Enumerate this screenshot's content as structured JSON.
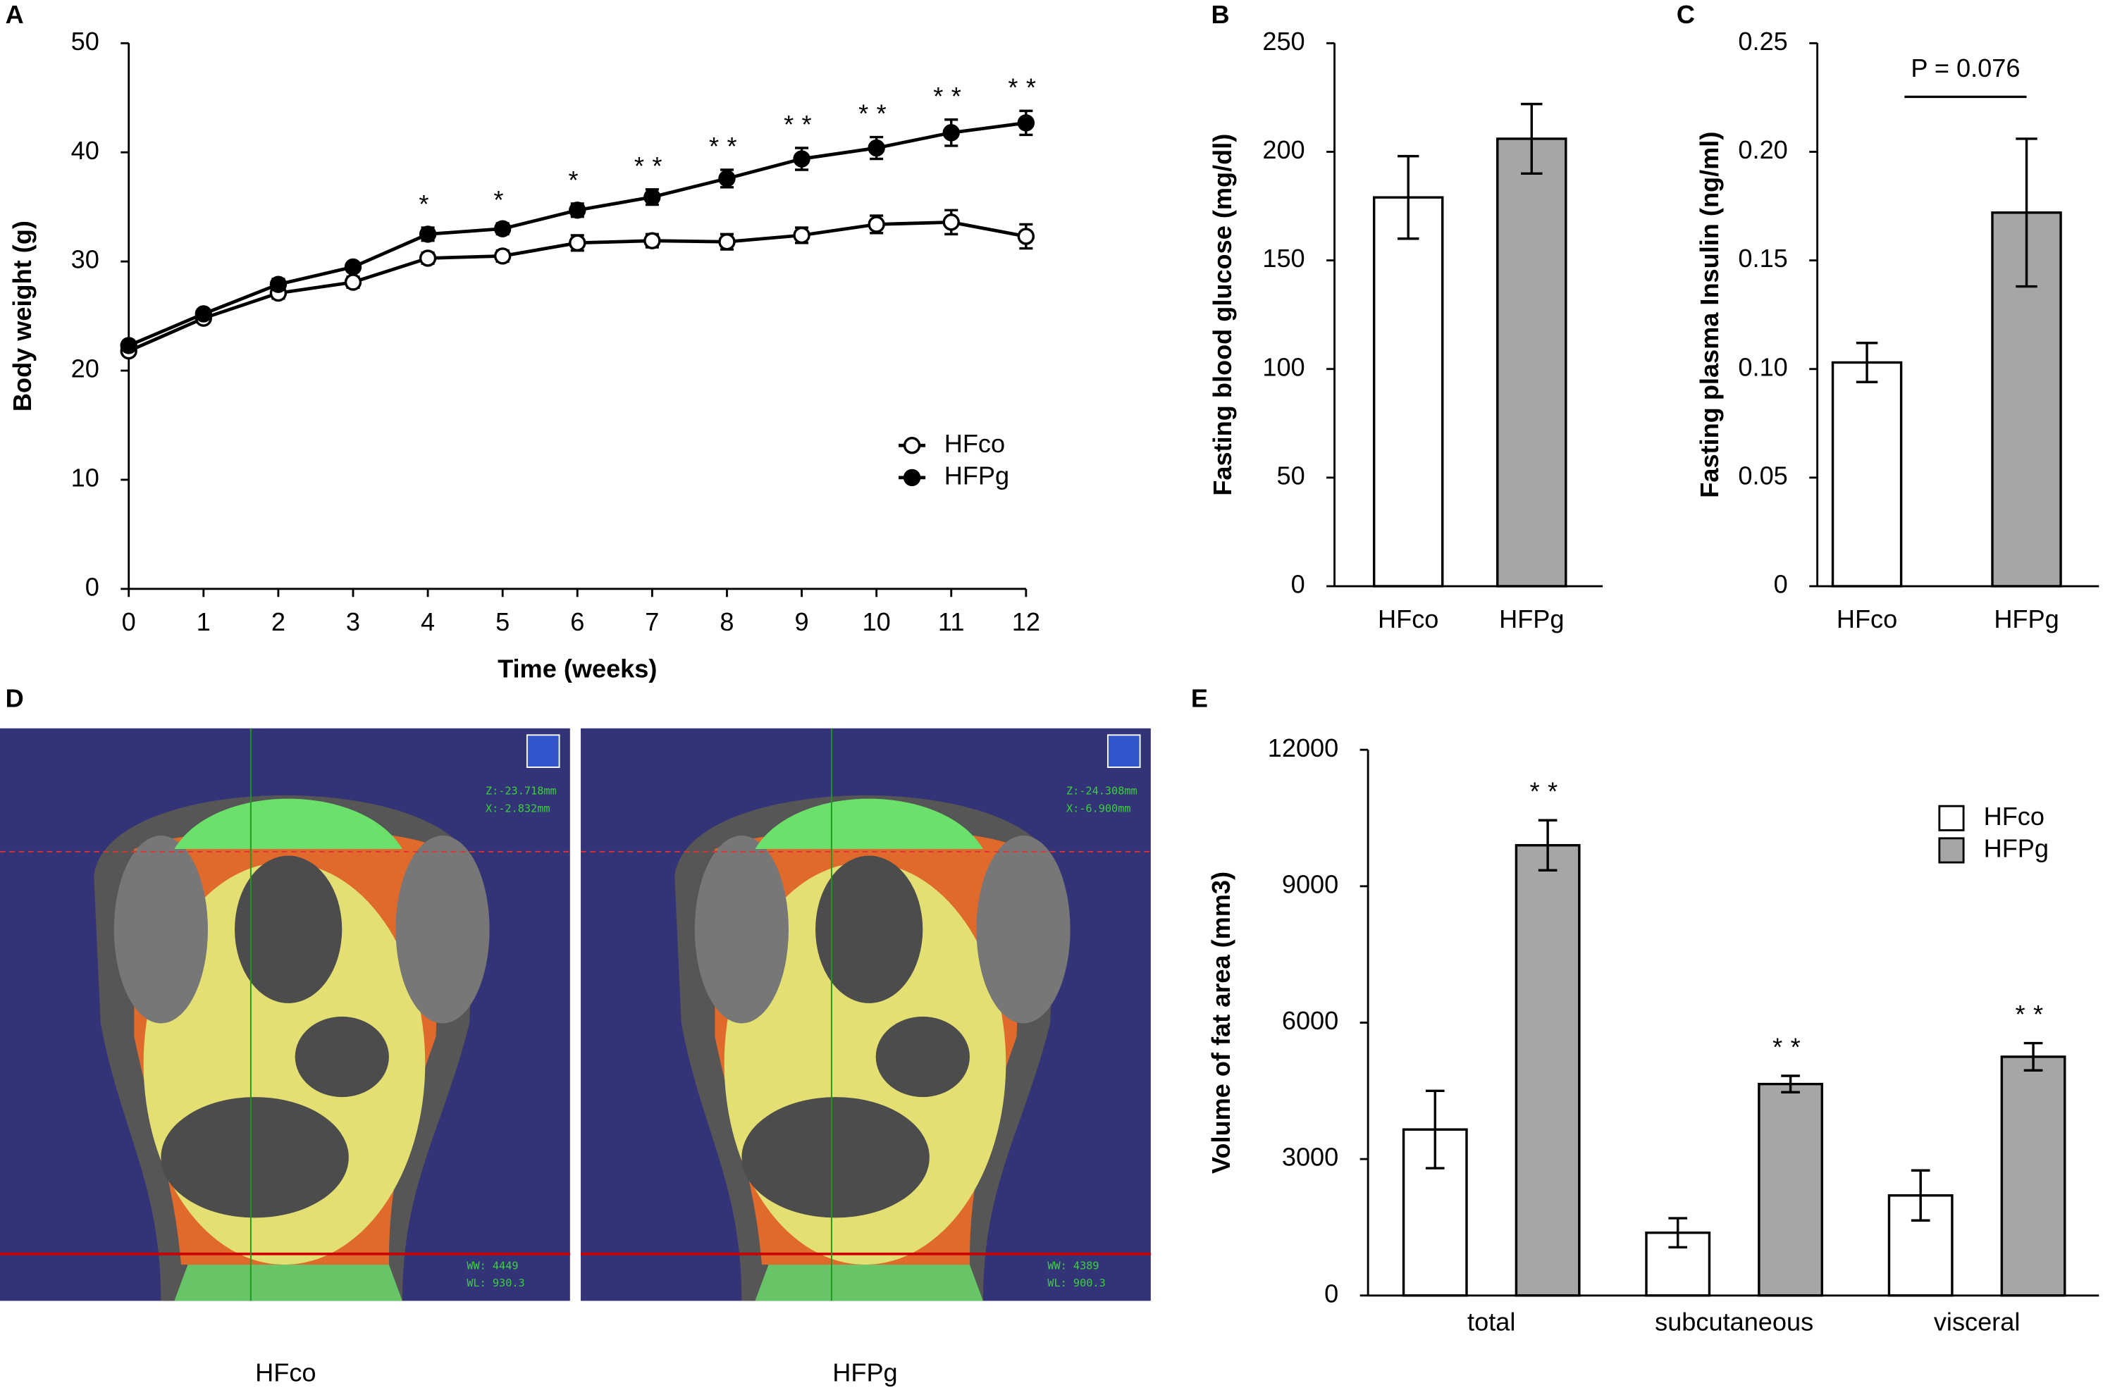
{
  "chart_data": [
    {
      "type": "line",
      "panel_label": "A",
      "xlabel": "Time (weeks)",
      "ylabel": "Body weight (g)",
      "x": [
        0,
        1,
        2,
        3,
        4,
        5,
        6,
        7,
        8,
        9,
        10,
        11,
        12
      ],
      "xlim": [
        0,
        12
      ],
      "xticks": [
        0,
        1,
        2,
        3,
        4,
        5,
        6,
        7,
        8,
        9,
        10,
        11,
        12
      ],
      "ylim": [
        0,
        50
      ],
      "yticks": [
        0,
        10,
        20,
        30,
        40,
        50
      ],
      "legend": "lower right",
      "series": [
        {
          "name": "HFco",
          "color": "#ffffff",
          "values": [
            21.8,
            24.8,
            27.1,
            28.1,
            30.3,
            30.5,
            31.7,
            31.9,
            31.8,
            32.4,
            33.4,
            33.6,
            32.3
          ],
          "errors": [
            0.4,
            0.4,
            0.5,
            0.5,
            0.5,
            0.5,
            0.7,
            0.6,
            0.7,
            0.7,
            0.8,
            1.1,
            1.1
          ]
        },
        {
          "name": "HFPg",
          "color": "#000000",
          "values": [
            22.3,
            25.2,
            27.9,
            29.5,
            32.5,
            33.0,
            34.7,
            35.9,
            37.6,
            39.4,
            40.4,
            41.8,
            42.7
          ],
          "errors": [
            0.4,
            0.4,
            0.5,
            0.4,
            0.6,
            0.5,
            0.6,
            0.7,
            0.8,
            1.0,
            1.0,
            1.2,
            1.1
          ]
        }
      ],
      "annotations": [
        {
          "x": 4,
          "text": "*"
        },
        {
          "x": 5,
          "text": "*"
        },
        {
          "x": 6,
          "text": "*"
        },
        {
          "x": 7,
          "text": "**"
        },
        {
          "x": 8,
          "text": "**"
        },
        {
          "x": 9,
          "text": "**"
        },
        {
          "x": 10,
          "text": "**"
        },
        {
          "x": 11,
          "text": "**"
        },
        {
          "x": 12,
          "text": "**"
        }
      ]
    },
    {
      "type": "bar",
      "panel_label": "B",
      "ylabel": "Fasting blood glucose (mg/dl)",
      "categories": [
        "HFco",
        "HFPg"
      ],
      "values": [
        179,
        206
      ],
      "errors": [
        19,
        16
      ],
      "colors": [
        "#ffffff",
        "#a6a6a6"
      ],
      "ylim": [
        0,
        250
      ],
      "yticks": [
        0,
        50,
        100,
        150,
        200,
        250
      ]
    },
    {
      "type": "bar",
      "panel_label": "C",
      "ylabel": "Fasting plasma Insulin (ng/ml)",
      "categories": [
        "HFco",
        "HFPg"
      ],
      "values": [
        0.103,
        0.172
      ],
      "errors": [
        0.009,
        0.034
      ],
      "colors": [
        "#ffffff",
        "#a6a6a6"
      ],
      "ylim": [
        0,
        0.25
      ],
      "yticks": [
        0,
        0.05,
        {
          "value": 0.1,
          "label": "0.10"
        },
        0.15,
        {
          "value": 0.2,
          "label": "0.20"
        },
        0.25
      ],
      "annotation": "P = 0.076"
    },
    {
      "type": "grouped_bar",
      "panel_label": "E",
      "ylabel": "Volume of fat area  (mm3)",
      "categories": [
        "total",
        "subcutaneous",
        "visceral"
      ],
      "ylim": [
        0,
        12000
      ],
      "yticks": [
        0,
        3000,
        6000,
        9000,
        12000
      ],
      "legend": "upper right",
      "series": [
        {
          "name": "HFco",
          "color": "#ffffff",
          "values": [
            3650,
            1380,
            2200
          ],
          "errors": [
            850,
            320,
            550
          ]
        },
        {
          "name": "HFPg",
          "color": "#a6a6a6",
          "values": [
            9900,
            4650,
            5250
          ],
          "errors": [
            550,
            180,
            300
          ],
          "annotations": [
            "**",
            "**",
            "**"
          ]
        }
      ]
    }
  ],
  "panel_d": {
    "label": "D",
    "images": [
      {
        "caption": "HFco",
        "overlay": [
          "Z:-23.718mm",
          "X:-2.832mm",
          "WW: 4449",
          "WL: 930.3"
        ]
      },
      {
        "caption": "HFPg",
        "overlay": [
          "Z:-24.308mm",
          "X:-6.900mm",
          "WW: 4389",
          "WL: 900.3"
        ]
      }
    ]
  }
}
